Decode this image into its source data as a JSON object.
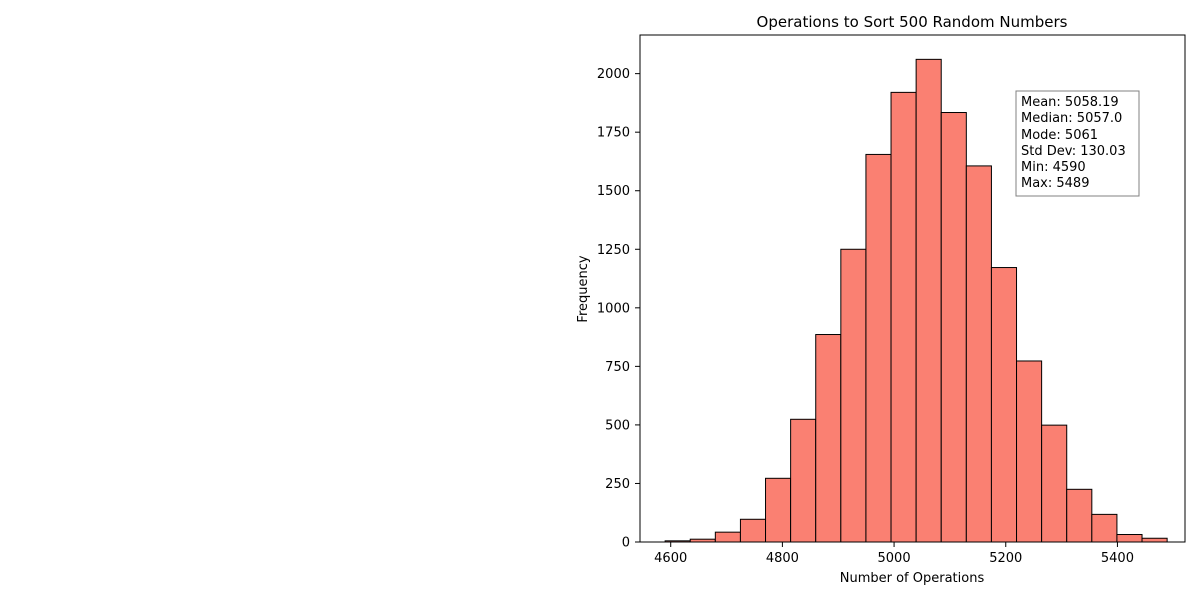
{
  "chart_data": {
    "type": "bar",
    "title": "Operations to Sort 500 Random Numbers",
    "xlabel": "Number of Operations",
    "ylabel": "Frequency",
    "xlim": [
      4545,
      5521
    ],
    "ylim": [
      0,
      2165
    ],
    "x_ticks": [
      4600,
      4800,
      5000,
      5200,
      5400
    ],
    "y_ticks": [
      0,
      250,
      500,
      750,
      1000,
      1250,
      1500,
      1750,
      2000
    ],
    "bin_edges": [
      4590,
      4634.95,
      4679.9,
      4724.85,
      4769.8,
      4814.75,
      4859.7,
      4904.65,
      4949.6,
      4994.55,
      5039.5,
      5084.45,
      5129.4,
      5174.35,
      5219.3,
      5264.25,
      5309.2,
      5354.15,
      5399.1,
      5444.05,
      5489
    ],
    "values": [
      5,
      12,
      42,
      97,
      272,
      524,
      886,
      1250,
      1655,
      1920,
      2061,
      1834,
      1606,
      1172,
      773,
      499,
      225,
      118,
      32,
      16
    ],
    "bar_color": "#fa8072",
    "edge_color": "#000000",
    "grid": false,
    "stats_box": {
      "placement": "top-right",
      "lines": [
        "Mean: 5058.19",
        "Median: 5057.0",
        "Mode: 5061",
        "Std Dev: 130.03",
        "Min: 4590",
        "Max: 5489"
      ]
    }
  }
}
